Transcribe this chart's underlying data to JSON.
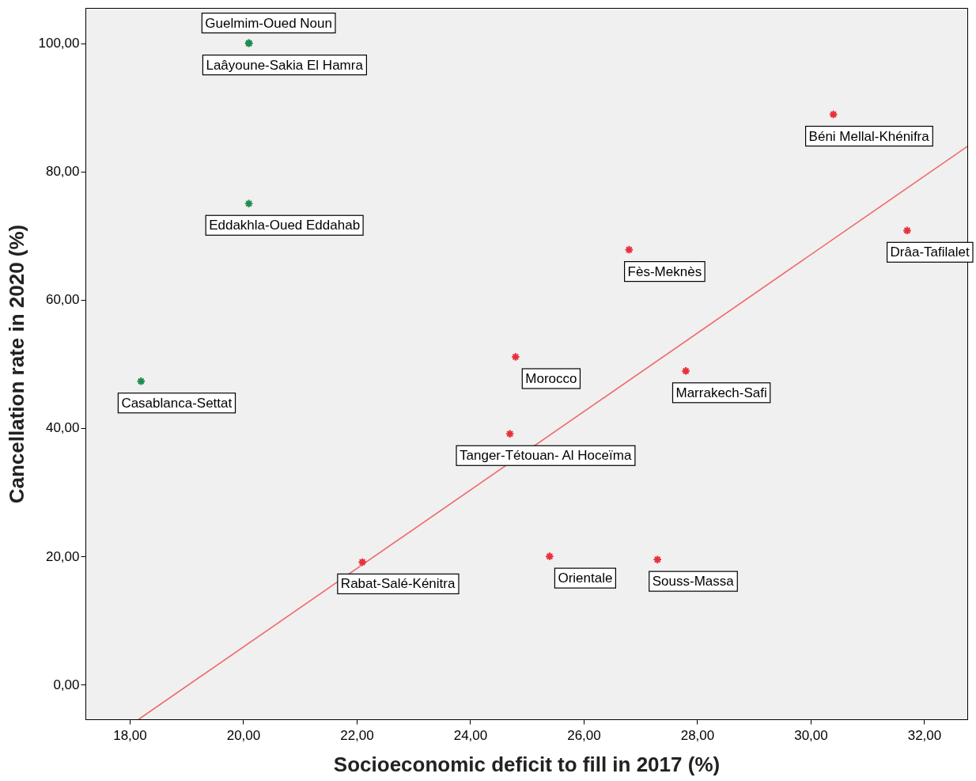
{
  "chart_data": {
    "type": "scatter",
    "xlabel": "Socioeconomic deficit to fill in 2017 (%)",
    "ylabel": "Cancellation rate in 2020 (%)",
    "xlim": [
      17.22,
      32.76
    ],
    "ylim": [
      -5.4,
      105.5
    ],
    "xticks": [
      {
        "value": 18,
        "label": "18,00"
      },
      {
        "value": 20,
        "label": "20,00"
      },
      {
        "value": 22,
        "label": "22,00"
      },
      {
        "value": 24,
        "label": "24,00"
      },
      {
        "value": 26,
        "label": "26,00"
      },
      {
        "value": 28,
        "label": "28,00"
      },
      {
        "value": 30,
        "label": "30,00"
      },
      {
        "value": 32,
        "label": "32,00"
      }
    ],
    "yticks": [
      {
        "value": 0,
        "label": "0,00"
      },
      {
        "value": 20,
        "label": "20,00"
      },
      {
        "value": 40,
        "label": "40,00"
      },
      {
        "value": 60,
        "label": "60,00"
      },
      {
        "value": 80,
        "label": "80,00"
      },
      {
        "value": 100,
        "label": "100,00"
      }
    ],
    "marker": "cross",
    "grid": false,
    "series": [
      {
        "color": "#1e8c4e",
        "x": [
          20.1,
          20.1,
          20.1,
          18.2
        ],
        "values": [
          100,
          100,
          75,
          47.3
        ]
      },
      {
        "color": "#e8303a",
        "x": [
          30.4,
          31.7,
          26.8,
          24.8,
          27.8,
          24.7,
          22.1,
          25.4,
          27.3
        ],
        "values": [
          88.9,
          70.8,
          67.8,
          51.1,
          48.9,
          39.1,
          19.1,
          20,
          19.5
        ]
      },
      {
        "type": "line",
        "marker": "none",
        "color": "#f06a6a",
        "x": [
          18.16,
          32.76
        ],
        "values": [
          -5.4,
          83.9
        ]
      }
    ],
    "annotations": [
      {
        "text": "Guelmim-Oued Noun",
        "x": 20.1,
        "y": 100
      },
      {
        "text": "Laâyoune-Sakia El Hamra",
        "x": 20.1,
        "y": 100
      },
      {
        "text": "Eddakhla-Oued Eddahab",
        "x": 20.1,
        "y": 75
      },
      {
        "text": "Casablanca-Settat",
        "x": 18.2,
        "y": 47.3
      },
      {
        "text": "Béni Mellal-Khénifra",
        "x": 30.4,
        "y": 88.9
      },
      {
        "text": "Drâa-Tafilalet",
        "x": 31.7,
        "y": 70.8
      },
      {
        "text": "Fès-Meknès",
        "x": 26.8,
        "y": 67.8
      },
      {
        "text": "Morocco",
        "x": 24.8,
        "y": 51.1
      },
      {
        "text": "Marrakech-Safi",
        "x": 27.8,
        "y": 48.9
      },
      {
        "text": "Tanger-Tétouan- Al Hoceïma",
        "x": 24.7,
        "y": 39.1
      },
      {
        "text": "Rabat-Salé-Kénitra",
        "x": 22.1,
        "y": 19.1
      },
      {
        "text": "Orientale",
        "x": 25.4,
        "y": 20
      },
      {
        "text": "Souss-Massa",
        "x": 27.3,
        "y": 19.5
      }
    ]
  }
}
